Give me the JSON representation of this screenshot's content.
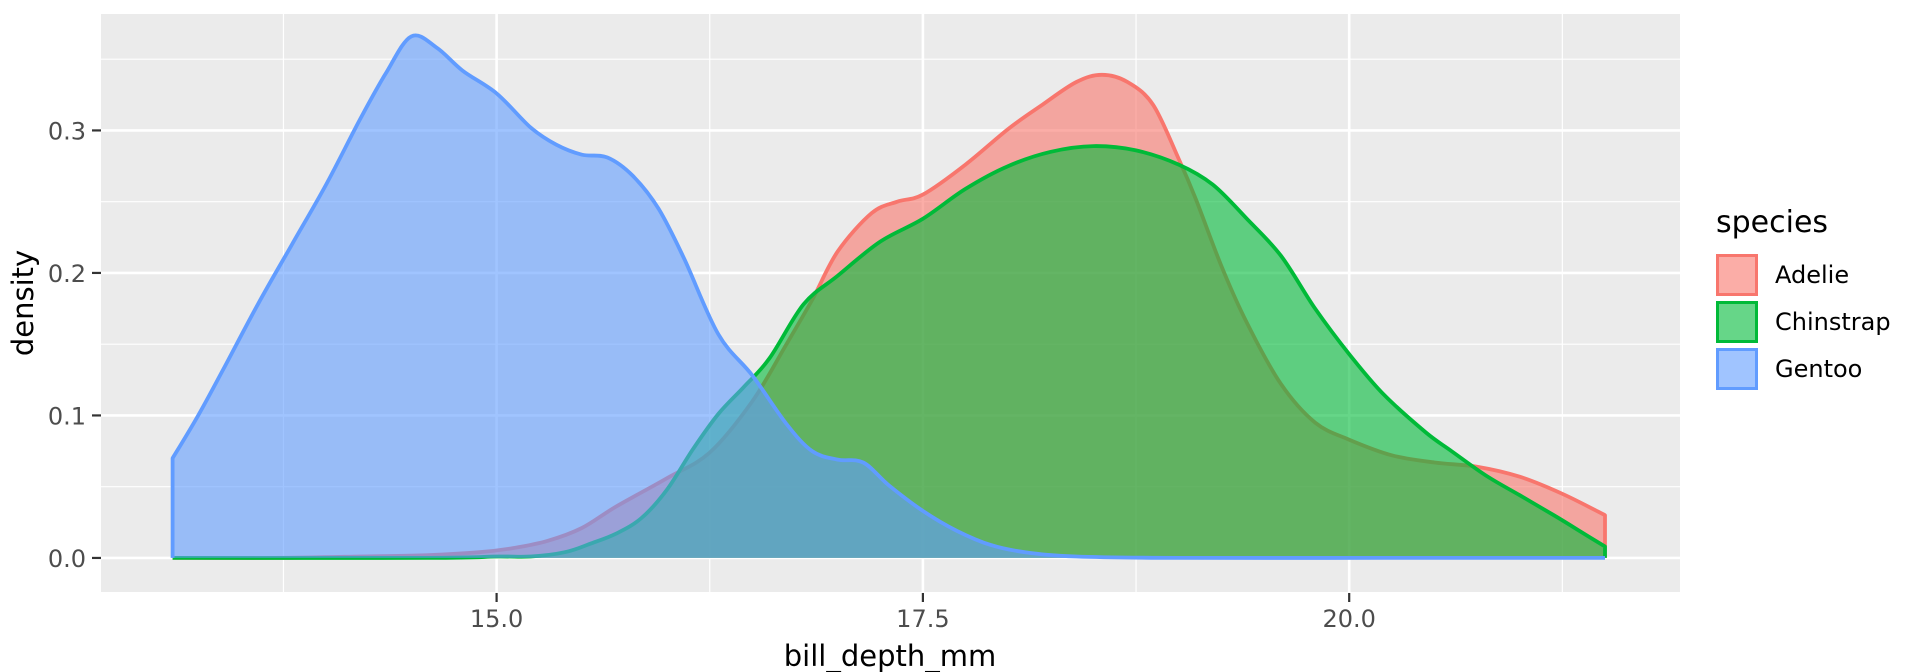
{
  "chart_data": {
    "type": "area",
    "variant": "density",
    "title": "",
    "xlabel": "bill_depth_mm",
    "ylabel": "density",
    "x_ticks": [
      15.0,
      17.5,
      20.0
    ],
    "x_tick_labels": [
      "15.0",
      "17.5",
      "20.0"
    ],
    "x_minor_breaks": [
      13.75,
      16.25,
      18.75,
      21.25
    ],
    "y_ticks": [
      0.0,
      0.1,
      0.2,
      0.3
    ],
    "y_tick_labels": [
      "0.0",
      "0.1",
      "0.2",
      "0.3"
    ],
    "y_minor_breaks": [
      0.05,
      0.15,
      0.25,
      0.35
    ],
    "xlim": [
      12.68,
      21.94
    ],
    "ylim": [
      -0.0239,
      0.3817
    ],
    "grid": "on",
    "legend_position": "right",
    "panel_background": "#EBEBEB",
    "grid_color": "#FFFFFF",
    "tick_color": "#333333",
    "tick_label_color": "#4D4D4D",
    "fill_opacity": 0.6,
    "legend": {
      "title": "species",
      "items": [
        {
          "label": "Adelie",
          "color": "#F8766D"
        },
        {
          "label": "Chinstrap",
          "color": "#00BA38"
        },
        {
          "label": "Gentoo",
          "color": "#619CFF"
        }
      ]
    },
    "series": [
      {
        "name": "Adelie",
        "color": "#F8766D",
        "points": [
          [
            13.1,
            0.0
          ],
          [
            13.7,
            0.0
          ],
          [
            14.2,
            0.001
          ],
          [
            14.6,
            0.002
          ],
          [
            14.9,
            0.004
          ],
          [
            15.1,
            0.007
          ],
          [
            15.3,
            0.012
          ],
          [
            15.5,
            0.021
          ],
          [
            15.7,
            0.036
          ],
          [
            16.0,
            0.056
          ],
          [
            16.25,
            0.074
          ],
          [
            16.5,
            0.11
          ],
          [
            16.7,
            0.15
          ],
          [
            16.85,
            0.181
          ],
          [
            17.0,
            0.215
          ],
          [
            17.2,
            0.242
          ],
          [
            17.35,
            0.25
          ],
          [
            17.5,
            0.255
          ],
          [
            17.75,
            0.276
          ],
          [
            18.0,
            0.301
          ],
          [
            18.2,
            0.318
          ],
          [
            18.4,
            0.334
          ],
          [
            18.55,
            0.339
          ],
          [
            18.7,
            0.334
          ],
          [
            18.85,
            0.318
          ],
          [
            19.0,
            0.28
          ],
          [
            19.1,
            0.252
          ],
          [
            19.25,
            0.205
          ],
          [
            19.4,
            0.165
          ],
          [
            19.6,
            0.122
          ],
          [
            19.8,
            0.095
          ],
          [
            20.0,
            0.083
          ],
          [
            20.25,
            0.072
          ],
          [
            20.5,
            0.067
          ],
          [
            20.75,
            0.064
          ],
          [
            21.0,
            0.057
          ],
          [
            21.25,
            0.045
          ],
          [
            21.5,
            0.03
          ]
        ]
      },
      {
        "name": "Chinstrap",
        "color": "#00BA38",
        "points": [
          [
            13.1,
            0.0
          ],
          [
            14.6,
            0.0
          ],
          [
            15.0,
            0.001
          ],
          [
            15.2,
            0.001
          ],
          [
            15.4,
            0.004
          ],
          [
            15.55,
            0.01
          ],
          [
            15.7,
            0.017
          ],
          [
            15.85,
            0.028
          ],
          [
            16.0,
            0.048
          ],
          [
            16.15,
            0.076
          ],
          [
            16.3,
            0.101
          ],
          [
            16.45,
            0.12
          ],
          [
            16.6,
            0.14
          ],
          [
            16.8,
            0.178
          ],
          [
            17.0,
            0.198
          ],
          [
            17.25,
            0.222
          ],
          [
            17.5,
            0.238
          ],
          [
            17.75,
            0.259
          ],
          [
            18.0,
            0.275
          ],
          [
            18.25,
            0.285
          ],
          [
            18.5,
            0.289
          ],
          [
            18.75,
            0.286
          ],
          [
            19.0,
            0.276
          ],
          [
            19.2,
            0.262
          ],
          [
            19.4,
            0.238
          ],
          [
            19.6,
            0.212
          ],
          [
            19.8,
            0.175
          ],
          [
            20.0,
            0.143
          ],
          [
            20.2,
            0.115
          ],
          [
            20.45,
            0.088
          ],
          [
            20.6,
            0.075
          ],
          [
            20.8,
            0.058
          ],
          [
            21.0,
            0.044
          ],
          [
            21.2,
            0.03
          ],
          [
            21.35,
            0.019
          ],
          [
            21.5,
            0.008
          ]
        ]
      },
      {
        "name": "Gentoo",
        "color": "#619CFF",
        "points": [
          [
            13.1,
            0.07
          ],
          [
            13.25,
            0.1
          ],
          [
            13.4,
            0.133
          ],
          [
            13.6,
            0.178
          ],
          [
            13.8,
            0.22
          ],
          [
            14.0,
            0.262
          ],
          [
            14.2,
            0.308
          ],
          [
            14.35,
            0.34
          ],
          [
            14.5,
            0.366
          ],
          [
            14.65,
            0.358
          ],
          [
            14.8,
            0.342
          ],
          [
            15.0,
            0.326
          ],
          [
            15.2,
            0.302
          ],
          [
            15.35,
            0.29
          ],
          [
            15.5,
            0.283
          ],
          [
            15.65,
            0.281
          ],
          [
            15.8,
            0.268
          ],
          [
            15.95,
            0.245
          ],
          [
            16.1,
            0.21
          ],
          [
            16.3,
            0.157
          ],
          [
            16.5,
            0.128
          ],
          [
            16.7,
            0.094
          ],
          [
            16.85,
            0.075
          ],
          [
            17.0,
            0.069
          ],
          [
            17.15,
            0.067
          ],
          [
            17.3,
            0.051
          ],
          [
            17.5,
            0.033
          ],
          [
            17.7,
            0.019
          ],
          [
            17.9,
            0.009
          ],
          [
            18.1,
            0.004
          ],
          [
            18.4,
            0.001
          ],
          [
            19.0,
            0.0
          ],
          [
            20.2,
            0.0
          ],
          [
            21.5,
            0.0
          ]
        ]
      }
    ]
  }
}
